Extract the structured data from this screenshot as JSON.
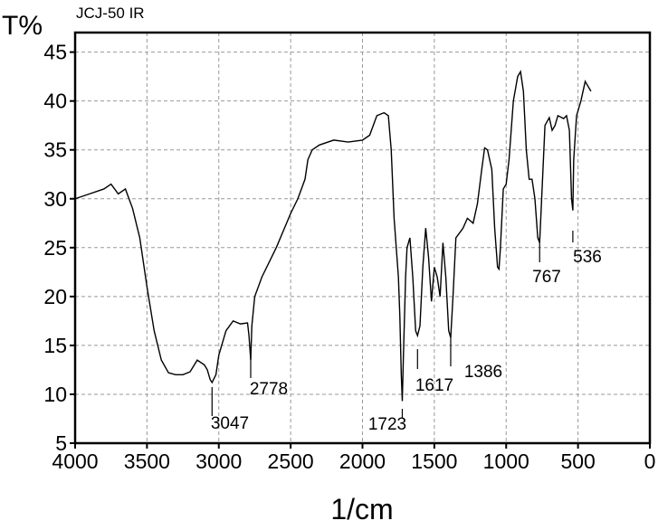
{
  "chart_data": {
    "type": "line",
    "title": "JCJ-50 IR",
    "y_label": "T%",
    "x_label": "1/cm",
    "xlim": [
      4000,
      0
    ],
    "ylim": [
      5,
      47
    ],
    "xticks": [
      4000,
      3500,
      3000,
      2500,
      2000,
      1500,
      1000,
      500,
      0
    ],
    "yticks": [
      5,
      10,
      15,
      20,
      25,
      30,
      35,
      40,
      45
    ],
    "grid": true,
    "series": [
      {
        "color": "#000000",
        "x": [
          4000,
          3900,
          3800,
          3750,
          3700,
          3650,
          3600,
          3550,
          3500,
          3450,
          3400,
          3350,
          3300,
          3250,
          3200,
          3150,
          3100,
          3080,
          3060,
          3047,
          3020,
          3000,
          2950,
          2900,
          2850,
          2800,
          2790,
          2778,
          2770,
          2750,
          2700,
          2600,
          2500,
          2450,
          2400,
          2380,
          2350,
          2300,
          2200,
          2100,
          2000,
          1950,
          1900,
          1850,
          1820,
          1800,
          1780,
          1760,
          1750,
          1740,
          1730,
          1723,
          1715,
          1700,
          1690,
          1670,
          1650,
          1630,
          1617,
          1600,
          1580,
          1560,
          1540,
          1520,
          1500,
          1480,
          1460,
          1440,
          1420,
          1400,
          1386,
          1370,
          1350,
          1300,
          1270,
          1230,
          1200,
          1170,
          1150,
          1130,
          1100,
          1080,
          1060,
          1050,
          1040,
          1020,
          1000,
          980,
          950,
          920,
          900,
          880,
          860,
          840,
          820,
          800,
          780,
          767,
          750,
          730,
          700,
          680,
          660,
          640,
          600,
          580,
          560,
          545,
          536,
          530,
          510,
          480,
          450,
          430,
          410
        ],
        "values": [
          30.0,
          30.5,
          31.0,
          31.5,
          30.5,
          31.0,
          29.0,
          26,
          21,
          16.5,
          13.5,
          12.2,
          12.0,
          12.0,
          12.3,
          13.5,
          13.0,
          12.5,
          11.5,
          11.2,
          12,
          14,
          16.5,
          17.5,
          17.2,
          17.3,
          16,
          13.5,
          17,
          20,
          22,
          25,
          28.5,
          30,
          32,
          34,
          35,
          35.5,
          36,
          35.8,
          36.0,
          36.5,
          38.5,
          38.8,
          38.5,
          35,
          28,
          24,
          22,
          18,
          12,
          9.3,
          14,
          22,
          25,
          26,
          22,
          16.5,
          16,
          17,
          23,
          27,
          24,
          19.5,
          23,
          22,
          20,
          25.5,
          22,
          16.5,
          15.8,
          20,
          26,
          27,
          28,
          27.5,
          29.5,
          33,
          35.2,
          35,
          33,
          27,
          23,
          22.8,
          25,
          31,
          31.5,
          34,
          40,
          42.5,
          43,
          41,
          35,
          32,
          32,
          30,
          26,
          25.5,
          31,
          37.5,
          38.3,
          37,
          37.5,
          38.5,
          38.2,
          38.5,
          37,
          30,
          28.8,
          34,
          38.5,
          40,
          42,
          41.5,
          41
        ]
      }
    ],
    "annotations": [
      {
        "x": 3047,
        "label": "3047"
      },
      {
        "x": 2778,
        "label": "2778"
      },
      {
        "x": 1723,
        "label": "1723"
      },
      {
        "x": 1617,
        "label": "1617"
      },
      {
        "x": 1386,
        "label": "1386"
      },
      {
        "x": 767,
        "label": "767"
      },
      {
        "x": 536,
        "label": "536"
      }
    ]
  }
}
